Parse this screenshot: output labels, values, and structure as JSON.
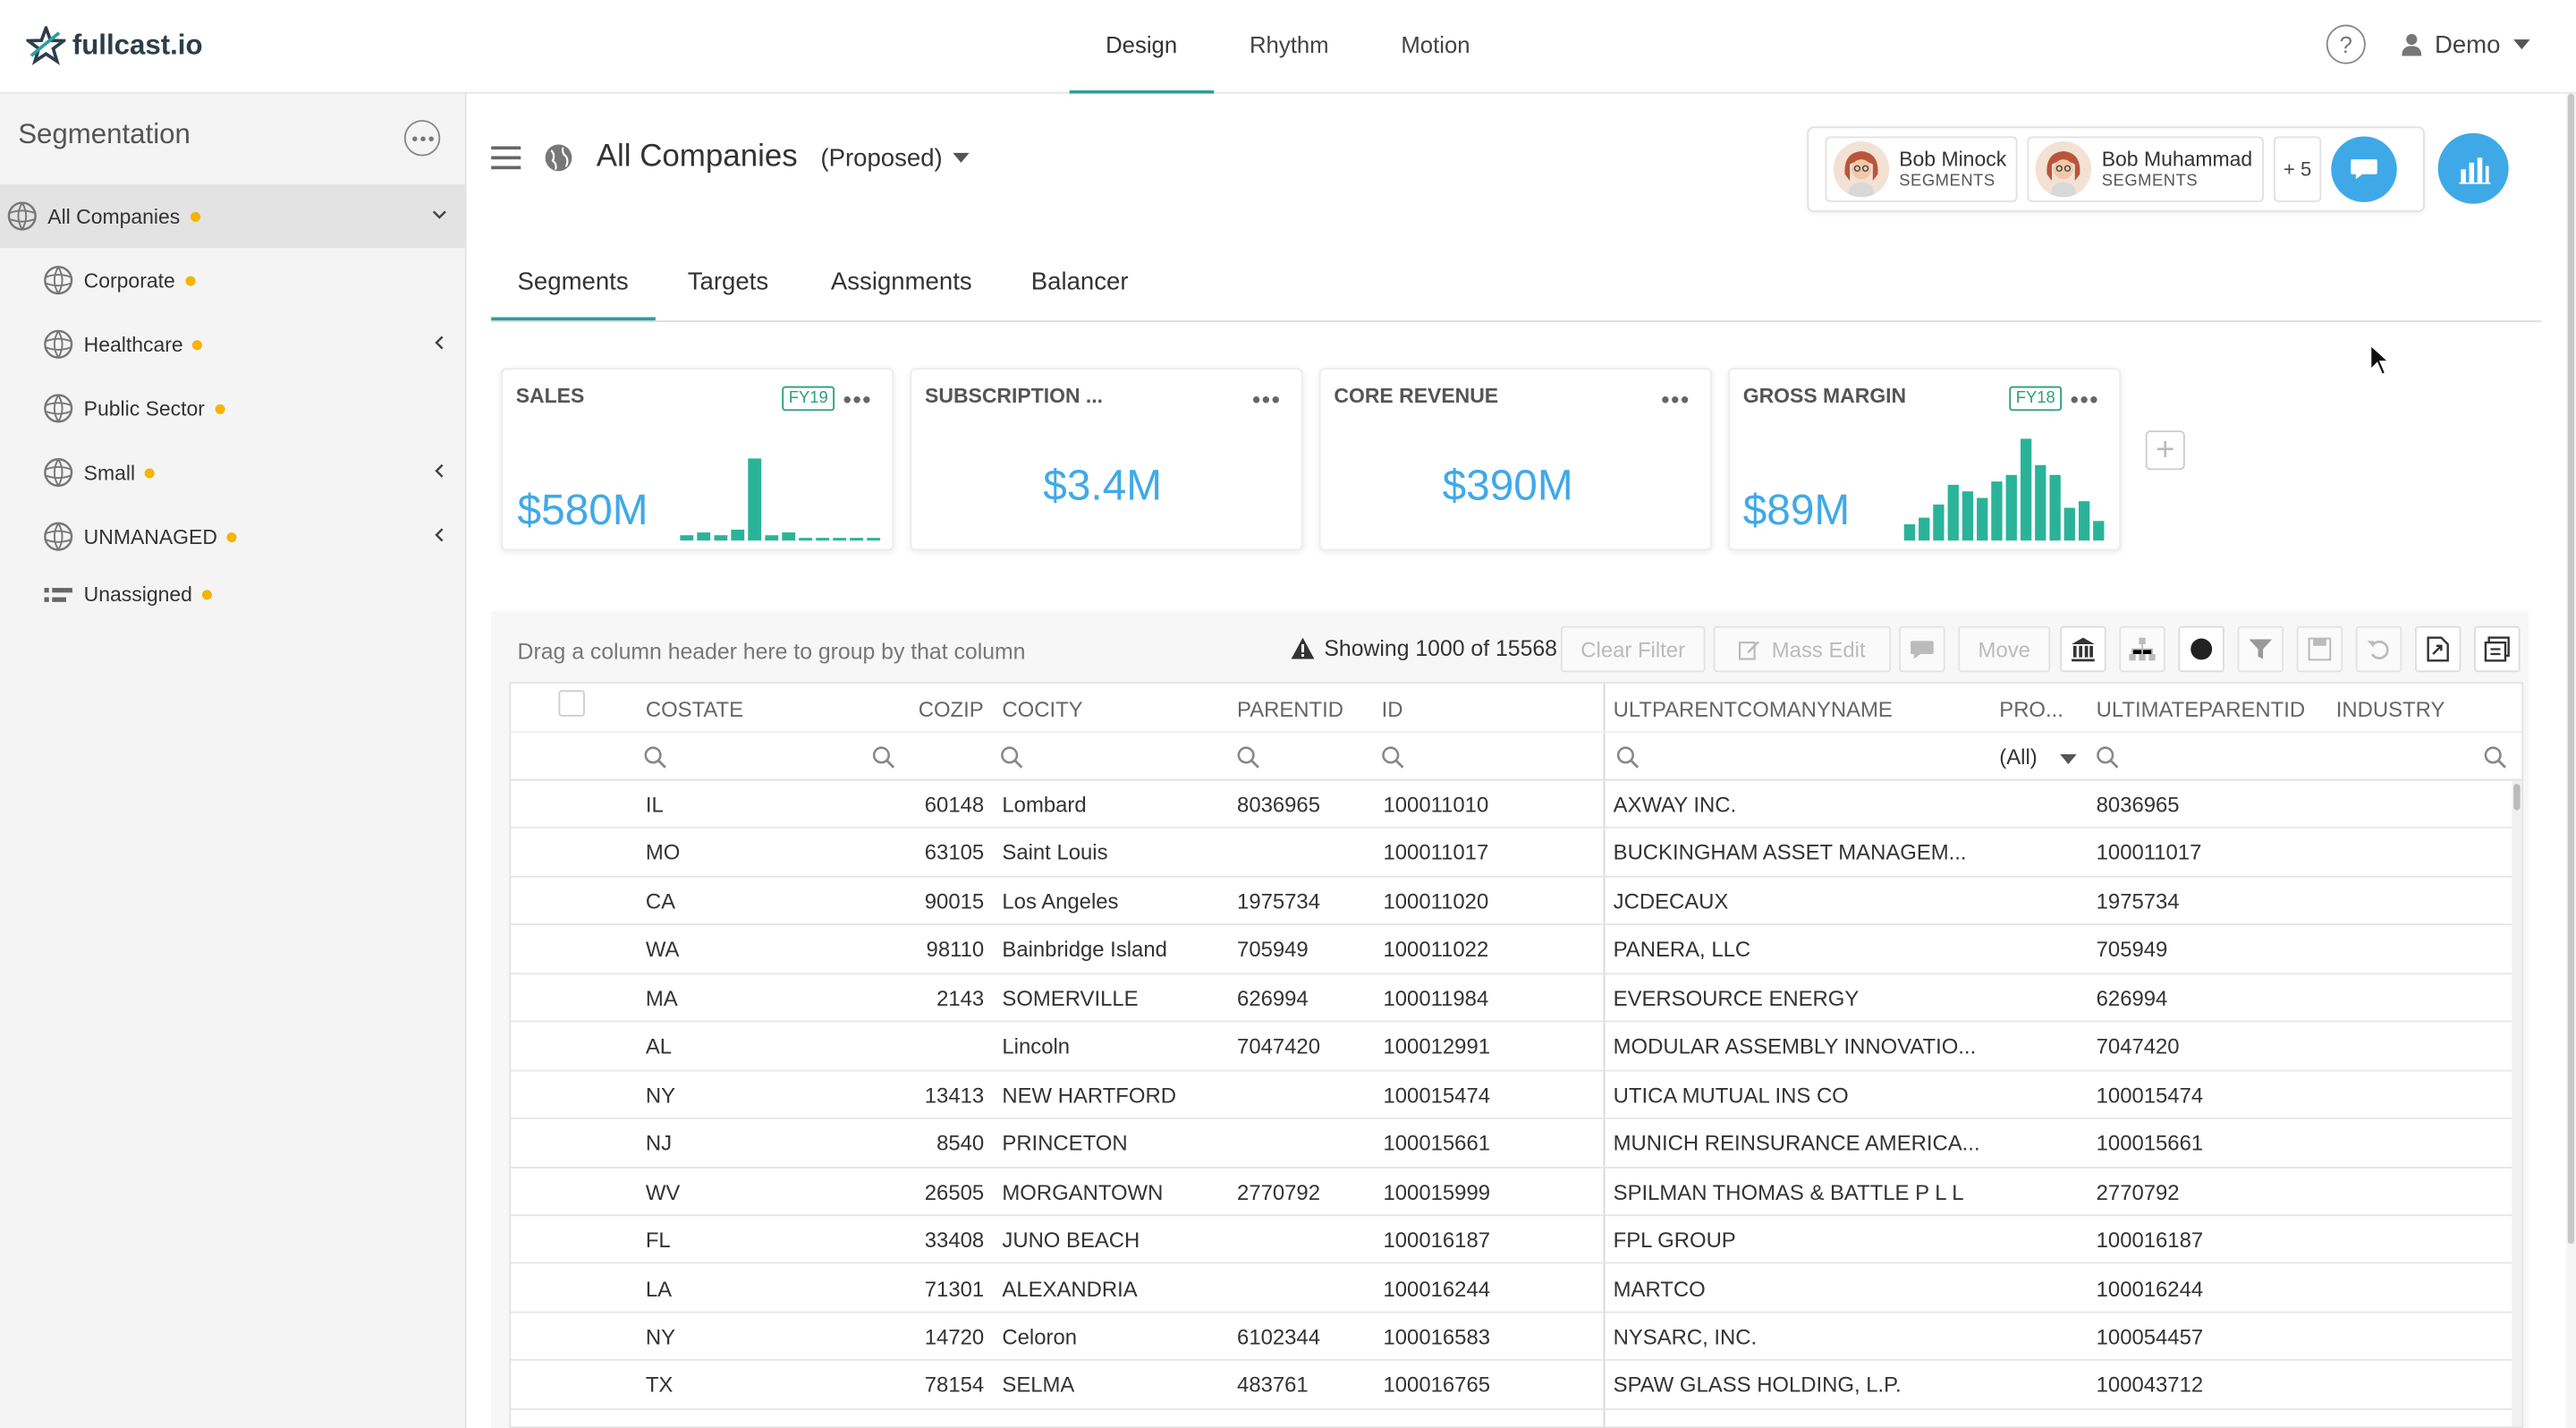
{
  "app": {
    "logo_text": "fullcast.io"
  },
  "nav": {
    "tabs": [
      "Design",
      "Rhythm",
      "Motion"
    ],
    "active": "Design",
    "help": "?",
    "user": "Demo"
  },
  "sidebar": {
    "title": "Segmentation",
    "items": [
      {
        "label": "All Companies",
        "active": true,
        "chevron": "down"
      },
      {
        "label": "Corporate",
        "chevron": ""
      },
      {
        "label": "Healthcare",
        "chevron": "left"
      },
      {
        "label": "Public Sector",
        "chevron": ""
      },
      {
        "label": "Small",
        "chevron": "left"
      },
      {
        "label": "UNMANAGED",
        "chevron": "left"
      },
      {
        "label": "Unassigned",
        "chevron": ""
      }
    ]
  },
  "header": {
    "title": "All Companies",
    "subtitle": "(Proposed)"
  },
  "collaborators": [
    {
      "name": "Bob Minock",
      "role": "SEGMENTS"
    },
    {
      "name": "Bob Muhammad",
      "role": "SEGMENTS"
    }
  ],
  "collab_more": "+ 5",
  "subtabs": [
    "Segments",
    "Targets",
    "Assignments",
    "Balancer"
  ],
  "cards": [
    {
      "title": "SALES",
      "fy": "FY19",
      "value": "$580M",
      "bars": [
        2,
        3,
        2,
        4,
        30,
        2,
        3,
        1,
        1,
        1,
        1,
        1
      ]
    },
    {
      "title": "SUBSCRIPTION ...",
      "fy": "",
      "value": "$3.4M",
      "bars": []
    },
    {
      "title": "CORE REVENUE",
      "fy": "",
      "value": "$390M",
      "bars": []
    },
    {
      "title": "GROSS MARGIN",
      "fy": "FY18",
      "value": "$89M",
      "bars": [
        10,
        14,
        22,
        34,
        30,
        26,
        36,
        40,
        62,
        46,
        40,
        20,
        24,
        12
      ]
    }
  ],
  "grid": {
    "drag_hint": "Drag a column header here to group by that column",
    "showing": "Showing 1000 of 15568",
    "clear_filter": "Clear Filter",
    "mass_edit": "Mass Edit",
    "move": "Move",
    "columns": [
      "COSTATE",
      "COZIP",
      "COCITY",
      "PARENTID",
      "ID",
      "ULTPARENTCOMANYNAME",
      "PRO...",
      "ULTIMATEPARENTID",
      "INDUSTRY"
    ],
    "filter_all": "(All)",
    "rows": [
      [
        "IL",
        "60148",
        "Lombard",
        "8036965",
        "100011010",
        "AXWAY INC.",
        "8036965"
      ],
      [
        "MO",
        "63105",
        "Saint Louis",
        "",
        "100011017",
        "BUCKINGHAM ASSET MANAGEM...",
        "100011017"
      ],
      [
        "CA",
        "90015",
        "Los Angeles",
        "1975734",
        "100011020",
        "JCDECAUX",
        "1975734"
      ],
      [
        "WA",
        "98110",
        "Bainbridge Island",
        "705949",
        "100011022",
        "PANERA, LLC",
        "705949"
      ],
      [
        "MA",
        "2143",
        "SOMERVILLE",
        "626994",
        "100011984",
        "EVERSOURCE ENERGY",
        "626994"
      ],
      [
        "AL",
        "",
        "Lincoln",
        "7047420",
        "100012991",
        "MODULAR ASSEMBLY INNOVATIO...",
        "7047420"
      ],
      [
        "NY",
        "13413",
        "NEW HARTFORD",
        "",
        "100015474",
        "UTICA MUTUAL INS CO",
        "100015474"
      ],
      [
        "NJ",
        "8540",
        "PRINCETON",
        "",
        "100015661",
        "MUNICH REINSURANCE AMERICA...",
        "100015661"
      ],
      [
        "WV",
        "26505",
        "MORGANTOWN",
        "2770792",
        "100015999",
        "SPILMAN THOMAS & BATTLE P L L",
        "2770792"
      ],
      [
        "FL",
        "33408",
        "JUNO BEACH",
        "",
        "100016187",
        "FPL GROUP",
        "100016187"
      ],
      [
        "LA",
        "71301",
        "ALEXANDRIA",
        "",
        "100016244",
        "MARTCO",
        "100016244"
      ],
      [
        "NY",
        "14720",
        "Celoron",
        "6102344",
        "100016583",
        "NYSARC, INC.",
        "100054457"
      ],
      [
        "TX",
        "78154",
        "SELMA",
        "483761",
        "100016765",
        "SPAW GLASS HOLDING, L.P.",
        "100043712"
      ]
    ]
  },
  "colors": {
    "accent": "#2a9fa0",
    "blue": "#3fa9e8",
    "bar_green": "#2bb39a",
    "dot": "#f4b400"
  }
}
